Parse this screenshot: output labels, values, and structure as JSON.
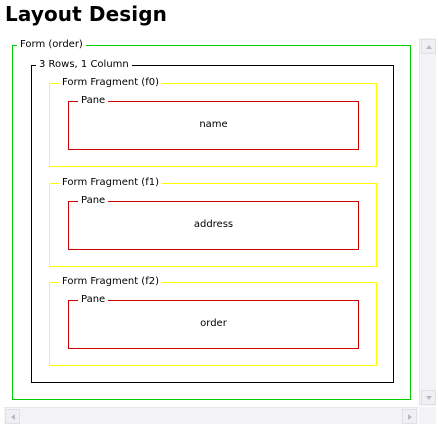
{
  "page": {
    "title": "Layout Design"
  },
  "layout": {
    "form_label": "Form (order)",
    "grid_label": "3 Rows, 1 Column",
    "fragments": [
      {
        "label": "Form Fragment (f0)",
        "pane_label": "Pane",
        "content": "name"
      },
      {
        "label": "Form Fragment (f1)",
        "pane_label": "Pane",
        "content": "address"
      },
      {
        "label": "Form Fragment (f2)",
        "pane_label": "Pane",
        "content": "order"
      }
    ]
  },
  "colors": {
    "form_border": "#00cc00",
    "grid_border": "#000000",
    "fragment_border": "#ffff00",
    "pane_border": "#cc0000"
  },
  "icons": {
    "scroll_up": "arrow-up-icon",
    "scroll_down": "arrow-down-icon",
    "scroll_left": "arrow-left-icon",
    "scroll_right": "arrow-right-icon"
  }
}
